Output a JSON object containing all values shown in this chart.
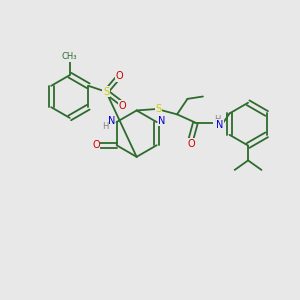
{
  "bg_color": "#e8e8e8",
  "bond_color": "#2d6b2d",
  "atom_colors": {
    "N": "#0000cc",
    "O": "#cc0000",
    "S": "#cccc00",
    "H": "#808080"
  },
  "lw": 1.3,
  "fs": 7.0,
  "fs_small": 6.0
}
